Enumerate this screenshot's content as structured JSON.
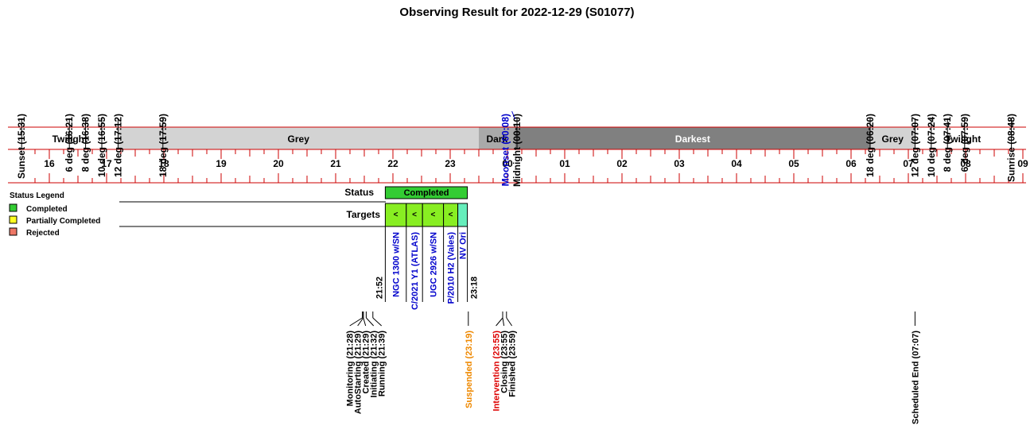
{
  "chart_data": {
    "type": "timeline",
    "title": "Observing Result for 2022-12-29 (S01077)",
    "hour_ticks": [
      "16",
      "17",
      "18",
      "19",
      "20",
      "21",
      "22",
      "23",
      "00",
      "01",
      "02",
      "03",
      "04",
      "05",
      "06",
      "07",
      "08",
      "09"
    ],
    "twilight_markers": [
      {
        "label": "Sunset (15:31)",
        "time": "15:31"
      },
      {
        "label": "6 deg (16:21)",
        "time": "16:21"
      },
      {
        "label": "8 deg (16:38)",
        "time": "16:38"
      },
      {
        "label": "10 deg (16:55)",
        "time": "16:55"
      },
      {
        "label": "12 deg (17:12)",
        "time": "17:12"
      },
      {
        "label": "18 deg (17:59)",
        "time": "17:59"
      },
      {
        "label": "Midnight (00:10)",
        "time": "00:10"
      },
      {
        "label": "18 deg (06:20)",
        "time": "06:20"
      },
      {
        "label": "12 deg (07:07)",
        "time": "07:07"
      },
      {
        "label": "10 deg (07:24)",
        "time": "07:24"
      },
      {
        "label": "8 deg (07:41)",
        "time": "07:41"
      },
      {
        "label": "6 deg (07:59)",
        "time": "07:59"
      },
      {
        "label": "Sunrise (08:48)",
        "time": "08:48"
      }
    ],
    "moon_marker": {
      "label": "Moonset (00:08)",
      "time": "00:08",
      "color": "#0000cc"
    },
    "sky_bands": [
      {
        "label": "Twilight",
        "start": "15:31",
        "end": "17:12",
        "color": "#ffffff"
      },
      {
        "label": "Grey",
        "start": "17:12",
        "end": "23:30",
        "color": "#d3d3d3"
      },
      {
        "label": "Dark",
        "start": "23:30",
        "end": "00:08",
        "color": "#a9a9a9"
      },
      {
        "label": "Darkest",
        "start": "00:08",
        "end": "06:20",
        "color": "#808080"
      },
      {
        "label": "Grey",
        "start": "06:20",
        "end": "07:07",
        "color": "#d3d3d3"
      },
      {
        "label": "Twilight",
        "start": "07:07",
        "end": "08:48",
        "color": "#ffffff"
      }
    ],
    "status_row": {
      "label": "Status",
      "bar": {
        "label": "Completed",
        "start": "21:52",
        "end": "23:18",
        "color": "#33cc33"
      }
    },
    "targets_row": {
      "label": "Targets",
      "start_label": "21:52",
      "end_label": "23:18",
      "targets": [
        {
          "name": "NGC 1300 w/SN",
          "start": "21:52",
          "end": "22:14",
          "color": "#88ee22",
          "mark": "<"
        },
        {
          "name": "C/2021 Y1 (ATLAS)",
          "start": "22:14",
          "end": "22:31",
          "color": "#88ee22",
          "mark": "<"
        },
        {
          "name": "UGC 2926 w/SN",
          "start": "22:31",
          "end": "22:53",
          "color": "#88ee22",
          "mark": "<"
        },
        {
          "name": "P/2010 H2 (Vales)",
          "start": "22:53",
          "end": "23:08",
          "color": "#88ee22",
          "mark": "<"
        },
        {
          "name": "NV Ori",
          "start": "23:08",
          "end": "23:18",
          "color": "#66eebb",
          "mark": ""
        }
      ]
    },
    "legend": {
      "title": "Status Legend",
      "items": [
        {
          "label": "Completed",
          "color": "#33cc33"
        },
        {
          "label": "Partially Completed",
          "color": "#ffff22"
        },
        {
          "label": "Rejected",
          "color": "#ee7766"
        }
      ]
    },
    "events": [
      {
        "label": "Monitoring (21:28)",
        "time": "21:28",
        "color": "#000000"
      },
      {
        "label": "AutoStarting (21:29)",
        "time": "21:29",
        "color": "#000000"
      },
      {
        "label": "Created (21:29)",
        "time": "21:29",
        "color": "#000000"
      },
      {
        "label": "Initiating (21:32)",
        "time": "21:32",
        "color": "#000000"
      },
      {
        "label": "Running (21:39)",
        "time": "21:39",
        "color": "#000000"
      },
      {
        "label": "Suspended (23:19)",
        "time": "23:19",
        "color": "#ee8800"
      },
      {
        "label": "Intervention (23:55)",
        "time": "23:55",
        "color": "#dd0000"
      },
      {
        "label": "Closing (23:55)",
        "time": "23:55",
        "color": "#000000"
      },
      {
        "label": "Finished (23:59)",
        "time": "23:59",
        "color": "#000000"
      },
      {
        "label": "Scheduled End (07:07)",
        "time": "07:07",
        "color": "#000000"
      }
    ],
    "axis_color": "#cc0000"
  }
}
